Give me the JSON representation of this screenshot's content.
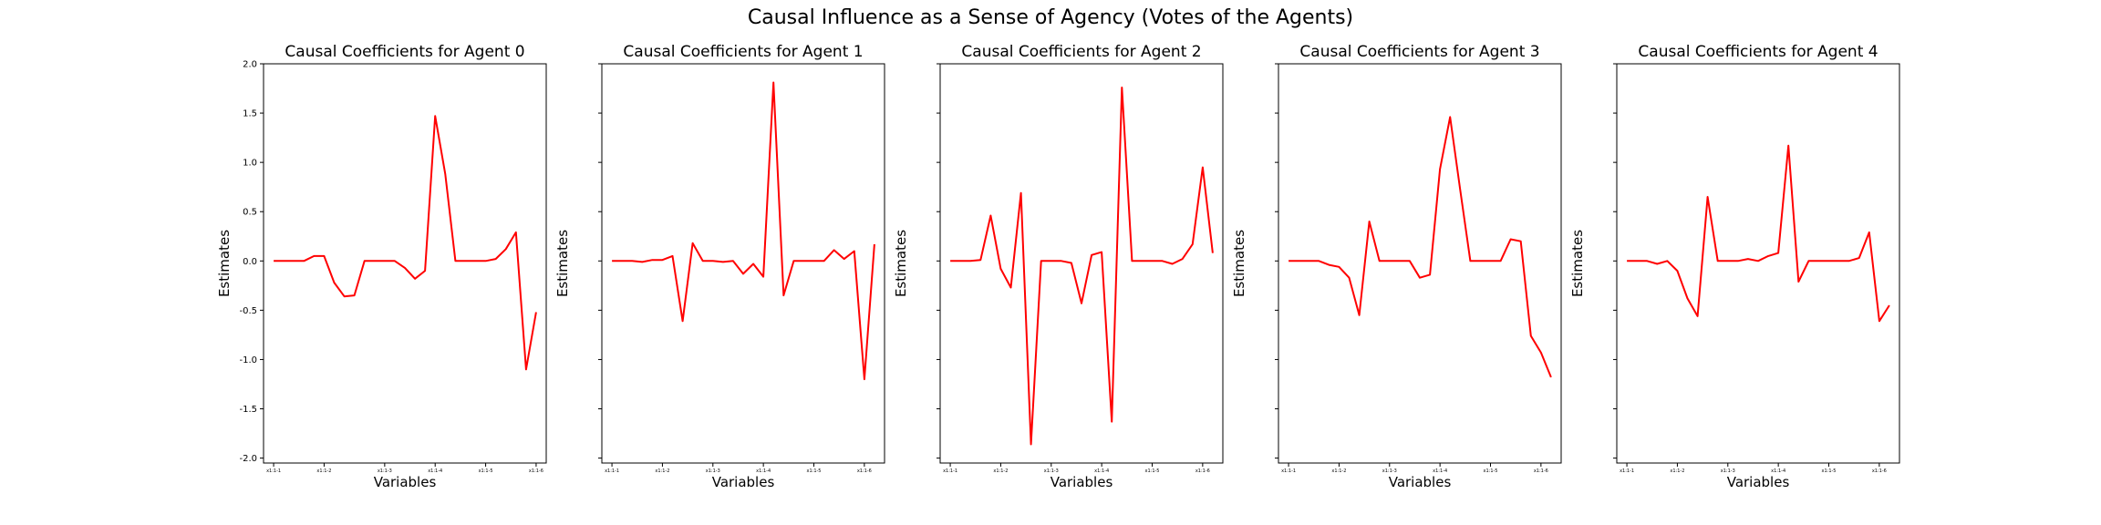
{
  "figure": {
    "suptitle": "Causal Influence as a Sense of Agency (Votes of the Agents)"
  },
  "chart_data": [
    {
      "type": "line",
      "title": "Causal Coefficients for Agent 0",
      "xlabel": "Variables",
      "ylabel": "Estimates",
      "ylim": [
        -2.05,
        2.0
      ],
      "yticks": [
        -2.0,
        -1.5,
        -1.0,
        -0.5,
        0.0,
        0.5,
        1.0,
        1.5,
        2.0
      ],
      "xticks": [
        {
          "i": 0,
          "label": "x1:1-1"
        },
        {
          "i": 5,
          "label": "x1:1-2"
        },
        {
          "i": 11,
          "label": "x1:1-3"
        },
        {
          "i": 16,
          "label": "x1:1-4"
        },
        {
          "i": 21,
          "label": "x1:1-5"
        },
        {
          "i": 26,
          "label": "x1:1-6"
        }
      ],
      "color": "#ff0000",
      "values": [
        0.0,
        0.0,
        0.0,
        0.0,
        0.05,
        0.05,
        -0.22,
        -0.36,
        -0.35,
        0.0,
        0.0,
        0.0,
        0.0,
        -0.07,
        -0.18,
        -0.1,
        1.47,
        0.88,
        0.0,
        0.0,
        0.0,
        0.0,
        0.02,
        0.12,
        0.29,
        -1.1,
        -0.52
      ]
    },
    {
      "type": "line",
      "title": "Causal Coefficients for Agent 1",
      "xlabel": "Variables",
      "ylabel": "Estimates",
      "ylim": [
        -2.05,
        2.0
      ],
      "yticks": [
        -2.0,
        -1.5,
        -1.0,
        -0.5,
        0.0,
        0.5,
        1.0,
        1.5,
        2.0
      ],
      "xticks": [
        {
          "i": 0,
          "label": "x1:1-1"
        },
        {
          "i": 5,
          "label": "x1:1-2"
        },
        {
          "i": 10,
          "label": "x1:1-3"
        },
        {
          "i": 15,
          "label": "x1:1-4"
        },
        {
          "i": 20,
          "label": "x1:1-5"
        },
        {
          "i": 25,
          "label": "x1:1-6"
        }
      ],
      "color": "#ff0000",
      "values": [
        0.0,
        0.0,
        0.0,
        -0.01,
        0.01,
        0.01,
        0.05,
        -0.61,
        0.18,
        0.0,
        0.0,
        -0.01,
        0.0,
        -0.13,
        -0.03,
        -0.16,
        1.81,
        -0.35,
        0.0,
        0.0,
        0.0,
        0.0,
        0.11,
        0.02,
        0.1,
        -1.2,
        0.17
      ]
    },
    {
      "type": "line",
      "title": "Causal Coefficients for Agent 2",
      "xlabel": "Variables",
      "ylabel": "Estimates",
      "ylim": [
        -2.05,
        2.0
      ],
      "yticks": [
        -2.0,
        -1.5,
        -1.0,
        -0.5,
        0.0,
        0.5,
        1.0,
        1.5,
        2.0
      ],
      "xticks": [
        {
          "i": 0,
          "label": "x1:1-1"
        },
        {
          "i": 5,
          "label": "x1:1-2"
        },
        {
          "i": 10,
          "label": "x1:1-3"
        },
        {
          "i": 15,
          "label": "x1:1-4"
        },
        {
          "i": 20,
          "label": "x1:1-5"
        },
        {
          "i": 25,
          "label": "x1:1-6"
        }
      ],
      "color": "#ff0000",
      "values": [
        0.0,
        0.0,
        0.0,
        0.01,
        0.46,
        -0.08,
        -0.27,
        0.69,
        -1.86,
        0.0,
        0.0,
        0.0,
        -0.02,
        -0.43,
        0.06,
        0.09,
        -1.63,
        1.76,
        0.0,
        0.0,
        0.0,
        0.0,
        -0.03,
        0.02,
        0.17,
        0.95,
        0.08
      ]
    },
    {
      "type": "line",
      "title": "Causal Coefficients for Agent 3",
      "xlabel": "Variables",
      "ylabel": "Estimates",
      "ylim": [
        -2.05,
        2.0
      ],
      "yticks": [
        -2.0,
        -1.5,
        -1.0,
        -0.5,
        0.0,
        0.5,
        1.0,
        1.5,
        2.0
      ],
      "xticks": [
        {
          "i": 0,
          "label": "x1:1-1"
        },
        {
          "i": 5,
          "label": "x1:1-2"
        },
        {
          "i": 10,
          "label": "x1:1-3"
        },
        {
          "i": 15,
          "label": "x1:1-4"
        },
        {
          "i": 20,
          "label": "x1:1-5"
        },
        {
          "i": 25,
          "label": "x1:1-6"
        }
      ],
      "color": "#ff0000",
      "values": [
        0.0,
        0.0,
        0.0,
        0.0,
        -0.04,
        -0.06,
        -0.17,
        -0.55,
        0.4,
        0.0,
        0.0,
        0.0,
        0.0,
        -0.17,
        -0.14,
        0.93,
        1.46,
        0.72,
        0.0,
        0.0,
        0.0,
        0.0,
        0.22,
        0.2,
        -0.76,
        -0.93,
        -1.18
      ]
    },
    {
      "type": "line",
      "title": "Causal Coefficients for Agent 4",
      "xlabel": "Variables",
      "ylabel": "Estimates",
      "ylim": [
        -2.05,
        2.0
      ],
      "yticks": [
        -2.0,
        -1.5,
        -1.0,
        -0.5,
        0.0,
        0.5,
        1.0,
        1.5,
        2.0
      ],
      "xticks": [
        {
          "i": 0,
          "label": "x1:1-1"
        },
        {
          "i": 5,
          "label": "x1:1-2"
        },
        {
          "i": 10,
          "label": "x1:1-3"
        },
        {
          "i": 15,
          "label": "x1:1-4"
        },
        {
          "i": 20,
          "label": "x1:1-5"
        },
        {
          "i": 25,
          "label": "x1:1-6"
        }
      ],
      "color": "#ff0000",
      "values": [
        0.0,
        0.0,
        0.0,
        -0.03,
        0.0,
        -0.1,
        -0.38,
        -0.56,
        0.65,
        0.0,
        0.0,
        0.0,
        0.02,
        0.0,
        0.05,
        0.08,
        1.17,
        -0.21,
        0.0,
        0.0,
        0.0,
        0.0,
        0.0,
        0.03,
        0.29,
        -0.61,
        -0.45
      ]
    }
  ]
}
